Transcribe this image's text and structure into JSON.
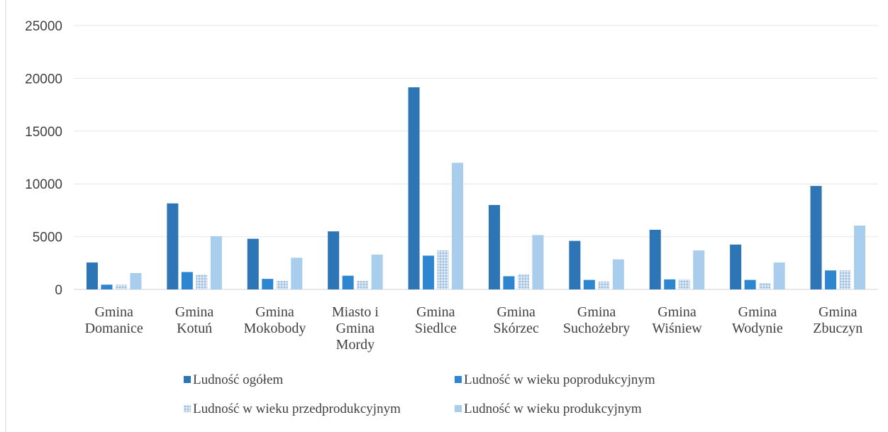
{
  "chart_data": {
    "type": "bar",
    "categories": [
      [
        "Gmina",
        "Domanice"
      ],
      [
        "Gmina",
        "Kotuń"
      ],
      [
        "Gmina",
        "Mokobody"
      ],
      [
        "Miasto i",
        "Gmina",
        "Mordy"
      ],
      [
        "Gmina",
        "Siedlce"
      ],
      [
        "Gmina",
        "Skórzec"
      ],
      [
        "Gmina",
        "Suchożebry"
      ],
      [
        "Gmina",
        "Wiśniew"
      ],
      [
        "Gmina",
        "Wodynie"
      ],
      [
        "Gmina",
        "Zbuczyn"
      ]
    ],
    "series": [
      {
        "name": "Ludność ogółem",
        "values": [
          2550,
          8150,
          4800,
          5500,
          19150,
          8000,
          4600,
          5650,
          4250,
          9800
        ]
      },
      {
        "name": "Ludność w wieku poprodukcyjnym",
        "values": [
          450,
          1650,
          1000,
          1300,
          3200,
          1250,
          900,
          950,
          900,
          1800
        ]
      },
      {
        "name": "Ludność w wieku przedprodukcyjnym",
        "values": [
          450,
          1400,
          800,
          800,
          3700,
          1450,
          750,
          950,
          600,
          1800
        ]
      },
      {
        "name": "Ludność w wieku produkcyjnym",
        "values": [
          1550,
          5050,
          3000,
          3300,
          12000,
          5150,
          2850,
          3700,
          2550,
          6050
        ]
      }
    ],
    "yticks": [
      "0",
      "5000",
      "10000",
      "15000",
      "20000",
      "25000"
    ],
    "ylim": [
      0,
      25000
    ],
    "grid": true,
    "legend_position": "bottom",
    "colors": [
      "#2E75B6",
      "#2F86D0",
      "#9DC3E6",
      "#A9CDEC"
    ]
  }
}
